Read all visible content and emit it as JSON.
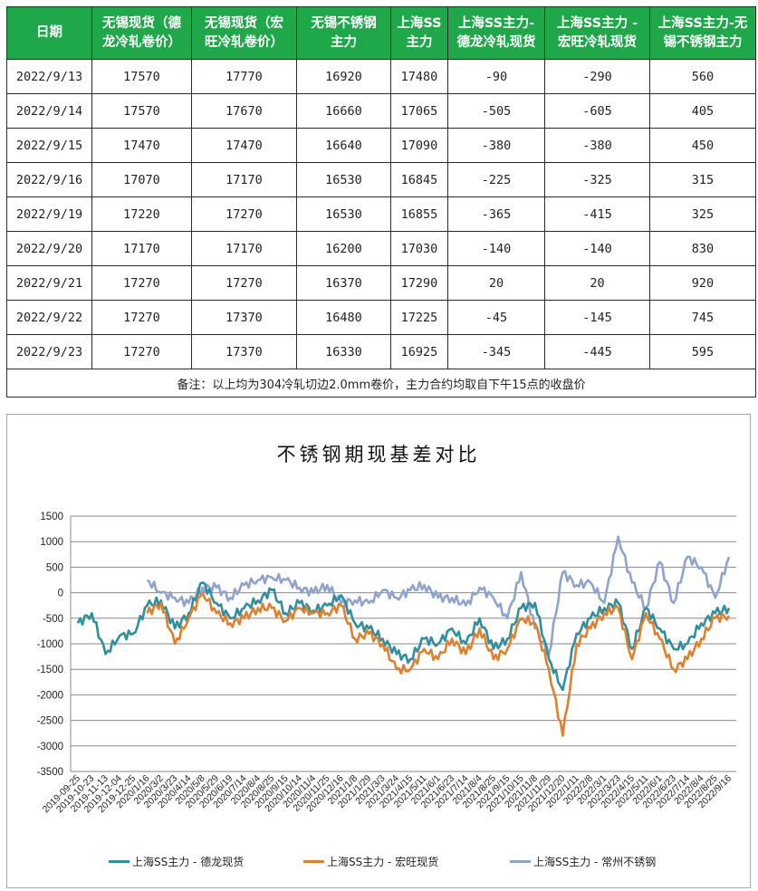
{
  "table": {
    "headers": [
      [
        "日期"
      ],
      [
        "无锡现货（德",
        "龙冷轧卷价）"
      ],
      [
        "无锡现货（宏",
        "旺冷轧卷价）"
      ],
      [
        "无锡不锈钢",
        "主力"
      ],
      [
        "上海SS",
        "主力"
      ],
      [
        "上海SS主力-",
        "德龙冷轧现货"
      ],
      [
        "上海SS主力 -",
        "宏旺冷轧现货"
      ],
      [
        "上海SS主力-无",
        "锡不锈钢主力"
      ]
    ],
    "rows": [
      [
        "2022/9/13",
        "17570",
        "17770",
        "16920",
        "17480",
        "-90",
        "-290",
        "560"
      ],
      [
        "2022/9/14",
        "17570",
        "17670",
        "16660",
        "17065",
        "-505",
        "-605",
        "405"
      ],
      [
        "2022/9/15",
        "17470",
        "17470",
        "16640",
        "17090",
        "-380",
        "-380",
        "450"
      ],
      [
        "2022/9/16",
        "17070",
        "17170",
        "16530",
        "16845",
        "-225",
        "-325",
        "315"
      ],
      [
        "2022/9/19",
        "17220",
        "17270",
        "16530",
        "16855",
        "-365",
        "-415",
        "325"
      ],
      [
        "2022/9/20",
        "17170",
        "17170",
        "16200",
        "17030",
        "-140",
        "-140",
        "830"
      ],
      [
        "2022/9/21",
        "17270",
        "17270",
        "16370",
        "17290",
        "20",
        "20",
        "920"
      ],
      [
        "2022/9/22",
        "17270",
        "17370",
        "16480",
        "17225",
        "-45",
        "-145",
        "745"
      ],
      [
        "2022/9/23",
        "17270",
        "17370",
        "16330",
        "16925",
        "-345",
        "-445",
        "595"
      ]
    ],
    "note": "备注：以上均为304冷轧切边2.0mm卷价，主力合约均取自下午15点的收盘价",
    "header_color": "#1fa84a"
  },
  "chart_data": {
    "type": "line",
    "title": "不锈钢期现基差对比",
    "xlabel": "",
    "ylabel": "",
    "ylim": [
      -3500,
      1500
    ],
    "yticks": [
      1500,
      1000,
      500,
      0,
      -500,
      -1000,
      -1500,
      -2000,
      -2500,
      -3000,
      -3500
    ],
    "grid": true,
    "legend_position": "bottom",
    "categories": [
      "2019-09-25",
      "2019-10-23",
      "2019-11-13",
      "2019-12-04",
      "2019-12-25",
      "2020/1/16",
      "2020/3/2",
      "2020/3/23",
      "2020/4/14",
      "2020/5/8",
      "2020/5/29",
      "2020/6/19",
      "2020/7/14",
      "2020/8/4",
      "2020/8/25",
      "2020/9/15",
      "2020/10/14",
      "2020/11/4",
      "2020/11/25",
      "2020/12/16",
      "2021/1/8",
      "2021/1/29",
      "2021/3/3",
      "2021/3/24",
      "2021/4/15",
      "2021/5/11",
      "2021/6/1",
      "2021/6/23",
      "2021/7/14",
      "2021/8/4",
      "2021/8/25",
      "2021/9/15",
      "2021/10/15",
      "2021/11/8",
      "2021/11/29",
      "2021/12/20",
      "2022/1/11",
      "2022/2/8",
      "2022/3/1",
      "2022/3/23",
      "2022/4/15",
      "2022/5/11",
      "2022/6/1",
      "2022/6/23",
      "2022/7/14",
      "2022/8/4",
      "2022/8/25",
      "2022/9/16"
    ],
    "series": [
      {
        "name": "上海SS主力 - 德龙现货",
        "color": "#2e8f9e",
        "values": [
          -600,
          -400,
          -1200,
          -850,
          -800,
          -250,
          -150,
          -700,
          -400,
          200,
          -200,
          -500,
          -300,
          -150,
          50,
          -400,
          -200,
          -350,
          -250,
          -50,
          -600,
          -700,
          -900,
          -1200,
          -1300,
          -900,
          -1000,
          -700,
          -1000,
          -500,
          -1100,
          -900,
          -300,
          -200,
          -1300,
          -1900,
          -800,
          -500,
          -300,
          -200,
          -1100,
          -300,
          -700,
          -1100,
          -1000,
          -600,
          -400,
          -300
        ]
      },
      {
        "name": "上海SS主力 - 宏旺现货",
        "color": "#e07f2c",
        "values": [
          null,
          null,
          null,
          null,
          null,
          -400,
          -200,
          -1000,
          -500,
          0,
          -400,
          -600,
          -500,
          -300,
          -300,
          -550,
          -300,
          -400,
          -400,
          -250,
          -900,
          -800,
          -1000,
          -1500,
          -1500,
          -1100,
          -1300,
          -900,
          -1200,
          -700,
          -1300,
          -1100,
          -500,
          -600,
          -1500,
          -2800,
          -1000,
          -700,
          -400,
          -300,
          -1300,
          -400,
          -900,
          -1500,
          -1300,
          -900,
          -500,
          -450
        ]
      },
      {
        "name": "上海SS主力 - 常州不锈钢",
        "color": "#8fa3cc",
        "values": [
          null,
          null,
          null,
          null,
          null,
          250,
          0,
          -100,
          -200,
          100,
          100,
          -100,
          150,
          250,
          300,
          250,
          100,
          0,
          150,
          -200,
          -150,
          -200,
          50,
          -100,
          50,
          150,
          -100,
          -100,
          -250,
          100,
          -100,
          -500,
          400,
          -700,
          -1200,
          400,
          150,
          200,
          -200,
          1100,
          200,
          -300,
          600,
          -200,
          700,
          500,
          -100,
          700
        ]
      }
    ]
  },
  "legend": {
    "items": [
      {
        "label": "上海SS主力 - 德龙现货",
        "color": "#2e8f9e"
      },
      {
        "label": "上海SS主力 - 宏旺现货",
        "color": "#e07f2c"
      },
      {
        "label": "上海SS主力 - 常州不锈钢",
        "color": "#8fa3cc"
      }
    ]
  }
}
